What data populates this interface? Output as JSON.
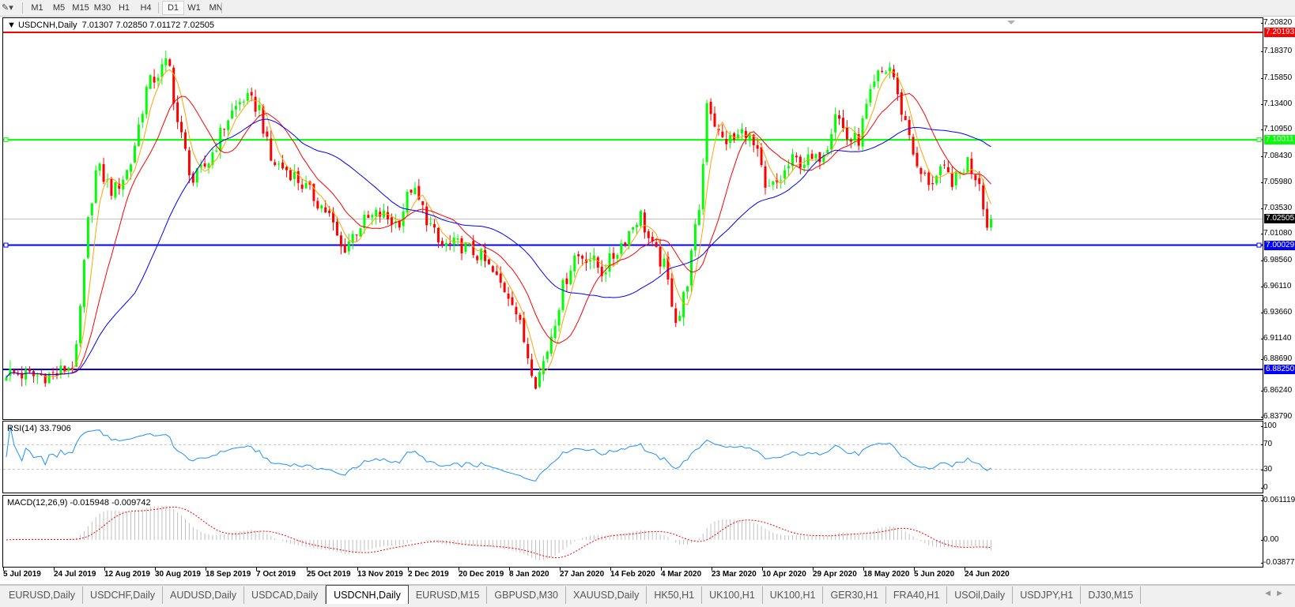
{
  "toolbar": {
    "tool_icon": "line-tools-icon",
    "timeframes": [
      "M1",
      "M5",
      "M15",
      "M30",
      "H1",
      "H4",
      "D1",
      "W1",
      "MN"
    ],
    "active_timeframe": "D1"
  },
  "main_chart": {
    "title": "USDCNH,Daily",
    "ohlc": "7.01307 7.02850 7.01172 7.02505",
    "price_ticks": [
      "7.20820",
      "7.18370",
      "7.15850",
      "7.13400",
      "7.10950",
      "7.08430",
      "7.05980",
      "7.03530",
      "7.01080",
      "6.98560",
      "6.96110",
      "6.93660",
      "6.91140",
      "6.88690",
      "6.86240",
      "6.83790"
    ],
    "levels": [
      {
        "label": "7.20193",
        "value": 7.20193,
        "color": "#ff0000",
        "handles": false
      },
      {
        "label": "7.10011",
        "value": 7.10011,
        "color": "#00ff00",
        "handles": true
      },
      {
        "label": "7.00029",
        "value": 7.00029,
        "color": "#0000ff",
        "handles": true
      },
      {
        "label": "6.88250",
        "value": 6.8825,
        "color": "#0000ff",
        "handles": false
      }
    ],
    "bid": {
      "label": "7.02505",
      "value": 7.02505,
      "color": "#000000"
    },
    "candle_colors": {
      "up": "#00ff00",
      "down": "#ff0000"
    },
    "ma_colors": [
      "#ffa500",
      "#ff0000",
      "#0000ff"
    ]
  },
  "rsi": {
    "label": "RSI(14) 33.7906",
    "ticks": [
      "100",
      "70",
      "30",
      "0"
    ],
    "color": "#1e90ff"
  },
  "macd": {
    "label": "MACD(12,26,9) -0.015948 -0.009742",
    "ticks": [
      "0.061119",
      "0.00",
      "-0.038777"
    ],
    "hist_color": "#c0c0c0",
    "signal_color": "#ff0000"
  },
  "chart_data": {
    "type": "candlestick",
    "symbol": "USDCNH",
    "timeframe": "Daily",
    "ylim": [
      6.8379,
      7.2082
    ],
    "x_tick_labels": [
      "5 Jul 2019",
      "24 Jul 2019",
      "12 Aug 2019",
      "30 Aug 2019",
      "18 Sep 2019",
      "7 Oct 2019",
      "25 Oct 2019",
      "13 Nov 2019",
      "2 Dec 2019",
      "20 Dec 2019",
      "8 Jan 2020",
      "27 Jan 2020",
      "14 Feb 2020",
      "4 Mar 2020",
      "23 Mar 2020",
      "10 Apr 2020",
      "29 Apr 2020",
      "18 May 2020",
      "5 Jun 2020",
      "24 Jun 2020"
    ],
    "approx_closes": [
      [
        "2019-07-05",
        6.88
      ],
      [
        "2019-07-15",
        6.876
      ],
      [
        "2019-07-24",
        6.878
      ],
      [
        "2019-07-31",
        6.89
      ],
      [
        "2019-08-05",
        7.03
      ],
      [
        "2019-08-08",
        7.075
      ],
      [
        "2019-08-14",
        7.05
      ],
      [
        "2019-08-20",
        7.075
      ],
      [
        "2019-08-26",
        7.15
      ],
      [
        "2019-09-03",
        7.175
      ],
      [
        "2019-09-06",
        7.12
      ],
      [
        "2019-09-12",
        7.06
      ],
      [
        "2019-09-18",
        7.08
      ],
      [
        "2019-09-25",
        7.12
      ],
      [
        "2019-10-01",
        7.14
      ],
      [
        "2019-10-07",
        7.13
      ],
      [
        "2019-10-11",
        7.08
      ],
      [
        "2019-10-18",
        7.07
      ],
      [
        "2019-10-25",
        7.05
      ],
      [
        "2019-11-01",
        7.03
      ],
      [
        "2019-11-06",
        6.995
      ],
      [
        "2019-11-13",
        7.02
      ],
      [
        "2019-11-20",
        7.03
      ],
      [
        "2019-11-27",
        7.02
      ],
      [
        "2019-12-02",
        7.055
      ],
      [
        "2019-12-06",
        7.035
      ],
      [
        "2019-12-12",
        7.0
      ],
      [
        "2019-12-20",
        7.0
      ],
      [
        "2019-12-27",
        6.99
      ],
      [
        "2020-01-03",
        6.965
      ],
      [
        "2020-01-08",
        6.95
      ],
      [
        "2020-01-14",
        6.895
      ],
      [
        "2020-01-17",
        6.87
      ],
      [
        "2020-01-21",
        6.9
      ],
      [
        "2020-01-27",
        6.96
      ],
      [
        "2020-01-31",
        6.99
      ],
      [
        "2020-02-05",
        6.99
      ],
      [
        "2020-02-10",
        6.975
      ],
      [
        "2020-02-14",
        6.99
      ],
      [
        "2020-02-19",
        7.01
      ],
      [
        "2020-02-24",
        7.03
      ],
      [
        "2020-02-28",
        7.0
      ],
      [
        "2020-03-04",
        6.98
      ],
      [
        "2020-03-09",
        6.925
      ],
      [
        "2020-03-13",
        6.97
      ],
      [
        "2020-03-18",
        7.05
      ],
      [
        "2020-03-20",
        7.14
      ],
      [
        "2020-03-25",
        7.1
      ],
      [
        "2020-03-30",
        7.1
      ],
      [
        "2020-04-03",
        7.11
      ],
      [
        "2020-04-08",
        7.08
      ],
      [
        "2020-04-10",
        7.05
      ],
      [
        "2020-04-15",
        7.06
      ],
      [
        "2020-04-20",
        7.08
      ],
      [
        "2020-04-24",
        7.08
      ],
      [
        "2020-04-29",
        7.08
      ],
      [
        "2020-05-04",
        7.1
      ],
      [
        "2020-05-06",
        7.13
      ],
      [
        "2020-05-11",
        7.1
      ],
      [
        "2020-05-15",
        7.1
      ],
      [
        "2020-05-18",
        7.13
      ],
      [
        "2020-05-22",
        7.16
      ],
      [
        "2020-05-27",
        7.17
      ],
      [
        "2020-05-29",
        7.14
      ],
      [
        "2020-06-03",
        7.1
      ],
      [
        "2020-06-05",
        7.07
      ],
      [
        "2020-06-10",
        7.06
      ],
      [
        "2020-06-15",
        7.07
      ],
      [
        "2020-06-19",
        7.06
      ],
      [
        "2020-06-24",
        7.08
      ],
      [
        "2020-06-26",
        7.07
      ],
      [
        "2020-06-29",
        7.06
      ],
      [
        "2020-07-01",
        7.015
      ],
      [
        "2020-07-03",
        7.02505
      ]
    ]
  },
  "tabs": [
    "EURUSD,Daily",
    "USDCHF,Daily",
    "AUDUSD,Daily",
    "USDCAD,Daily",
    "USDCNH,Daily",
    "EURUSD,M15",
    "GBPUSD,M30",
    "XAUUSD,Daily",
    "HK50,H1",
    "UK100,H1",
    "UK100,H1",
    "GER30,H1",
    "FRA40,H1",
    "USOil,Daily",
    "USDJPY,H1",
    "DJ30,M15"
  ],
  "active_tab": "USDCNH,Daily"
}
